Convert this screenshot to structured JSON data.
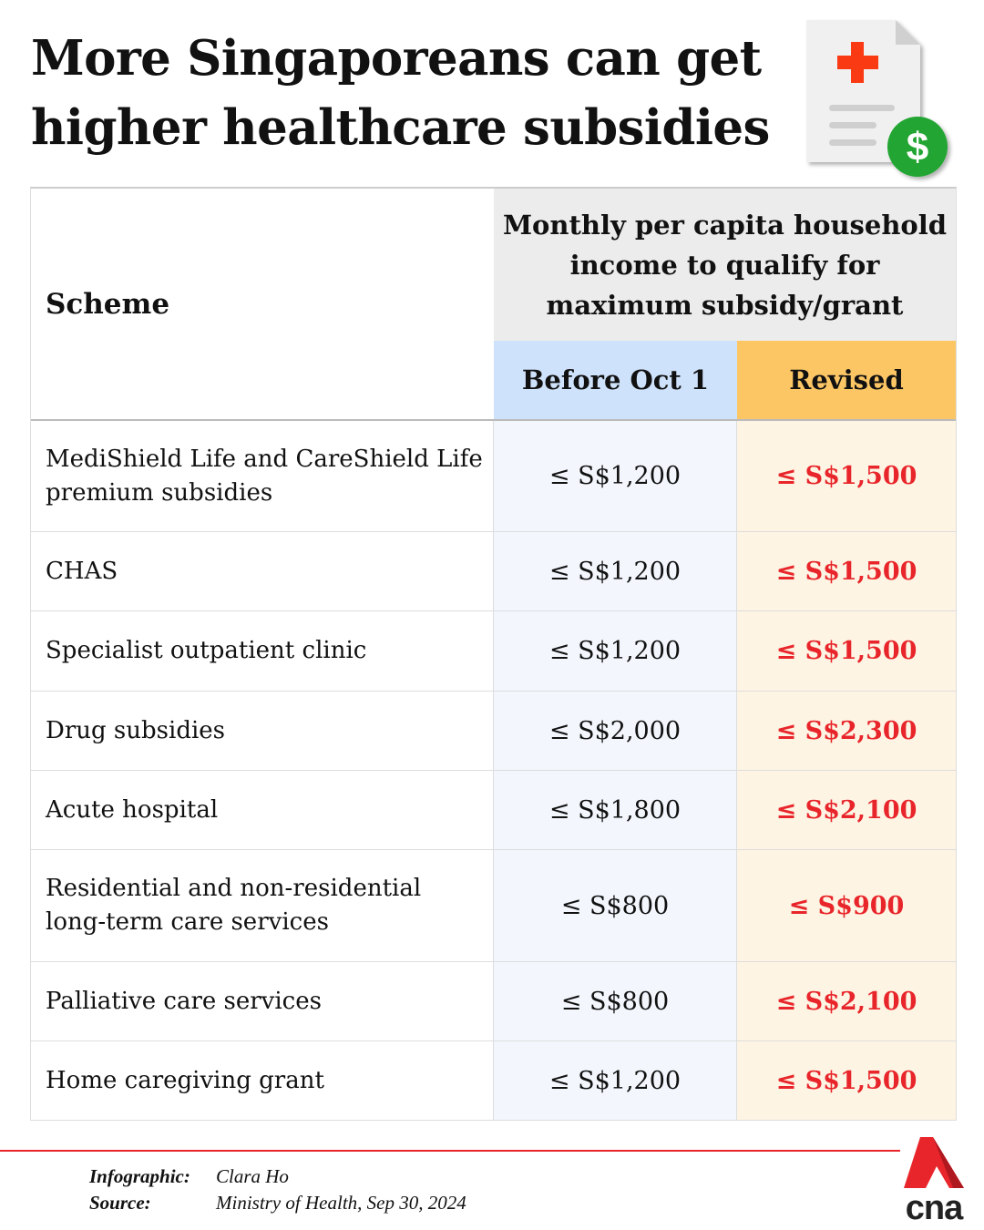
{
  "title_lines": [
    "More Singaporeans can get",
    "higher healthcare subsidies"
  ],
  "header_icon": "medical-document-dollar-icon",
  "table": {
    "scheme_header": "Scheme",
    "income_header": "Monthly per capita household income to qualify for maximum subsidy/grant",
    "before_header": "Before Oct 1",
    "revised_header": "Revised",
    "rows": [
      {
        "scheme": "MediShield Life and CareShield Life premium subsidies",
        "before": "≤ S$1,200",
        "revised": "≤ S$1,500"
      },
      {
        "scheme": "CHAS",
        "before": "≤ S$1,200",
        "revised": "≤ S$1,500"
      },
      {
        "scheme": "Specialist outpatient clinic",
        "before": "≤ S$1,200",
        "revised": "≤ S$1,500"
      },
      {
        "scheme": "Drug subsidies",
        "before": "≤ S$2,000",
        "revised": "≤ S$2,300"
      },
      {
        "scheme": "Acute hospital",
        "before": "≤ S$1,800",
        "revised": "≤ S$2,100"
      },
      {
        "scheme": "Residential and non-residential long-term care services",
        "before": "≤ S$800",
        "revised": "≤ S$900"
      },
      {
        "scheme": "Palliative care services",
        "before": "≤ S$800",
        "revised": "≤ S$2,100"
      },
      {
        "scheme": "Home caregiving grant",
        "before": "≤ S$1,200",
        "revised": "≤ S$1,500"
      }
    ]
  },
  "footer": {
    "infographic_label": "Infographic:",
    "infographic_value": "Clara Ho",
    "source_label": "Source:",
    "source_value": "Ministry of Health, Sep 30, 2024",
    "logo_text": "cna"
  },
  "colors": {
    "accent_red": "#e8252a",
    "before_header": "#cfe2fb",
    "revised_header": "#fdc665",
    "before_cell": "#f3f7fd",
    "revised_cell": "#fef4e4",
    "top_header": "#ececec"
  }
}
